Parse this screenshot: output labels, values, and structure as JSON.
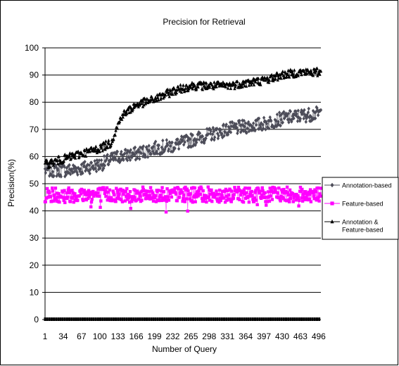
{
  "chart_data": {
    "type": "line",
    "title": "Precision for Retrieval",
    "xlabel": "Number of Query",
    "ylabel": "Precision(%)",
    "ylim": [
      0,
      100
    ],
    "yticks": [
      "0",
      "10",
      "20",
      "30",
      "40",
      "50",
      "60",
      "70",
      "80",
      "90",
      "100"
    ],
    "xticks": [
      "1",
      "34",
      "67",
      "100",
      "133",
      "166",
      "199",
      "232",
      "265",
      "298",
      "331",
      "364",
      "397",
      "430",
      "463",
      "496"
    ],
    "xlim": [
      1,
      500
    ],
    "grid": "horizontal",
    "legend_position": "right",
    "series": [
      {
        "name": "Annotation-based",
        "color": "#4d4d59",
        "marker": "diamond",
        "trend_x": [
          1,
          50,
          100,
          133,
          166,
          199,
          232,
          265,
          298,
          331,
          364,
          397,
          430,
          463,
          500
        ],
        "trend_y": [
          55,
          55,
          57,
          60,
          61,
          63,
          64,
          66,
          68,
          70,
          71,
          72,
          74,
          75,
          76
        ],
        "noise": 2.5
      },
      {
        "name": "Feature-based",
        "color": "#ff00ff",
        "marker": "square",
        "trend_x": [
          1,
          500
        ],
        "trend_y": [
          46,
          46
        ],
        "noise": 2.8
      },
      {
        "name": "Annotation & Feature-based",
        "color": "#000000",
        "marker": "triangle",
        "trend_x": [
          1,
          50,
          100,
          120,
          140,
          166,
          199,
          232,
          265,
          298,
          331,
          364,
          397,
          430,
          463,
          500
        ],
        "trend_y": [
          57,
          60,
          63,
          65,
          75,
          79,
          81,
          84,
          86,
          86,
          86,
          87,
          88,
          90,
          91,
          91
        ],
        "noise": 1.5
      }
    ]
  }
}
